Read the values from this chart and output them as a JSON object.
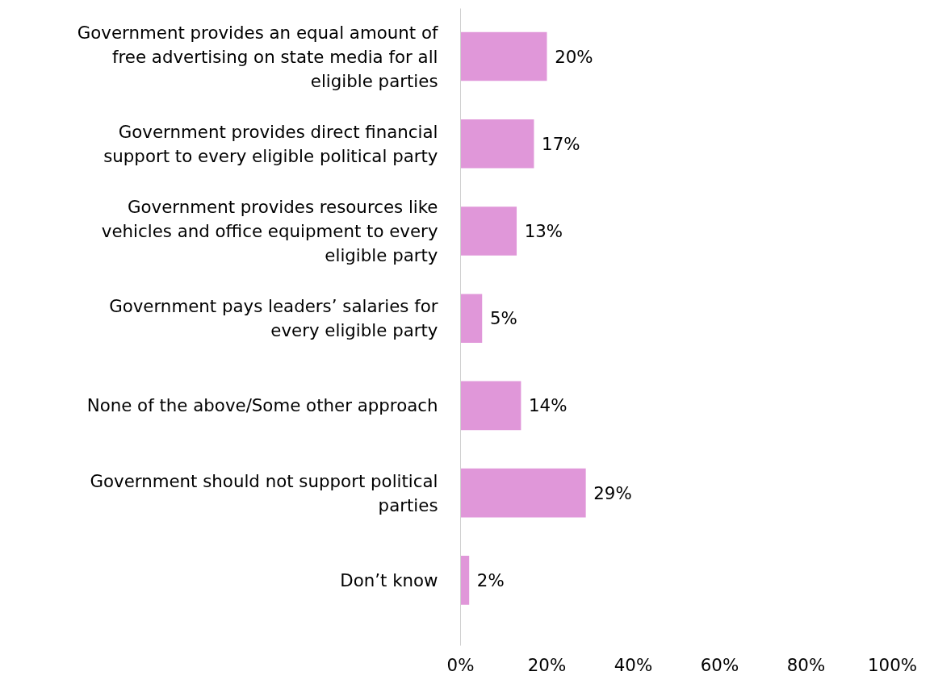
{
  "chart_data": {
    "type": "bar",
    "orientation": "horizontal",
    "categories": [
      "Government provides an equal amount of free advertising on state media for all eligible parties",
      "Government provides direct financial support to every eligible political party",
      "Government provides resources like vehicles and office equipment to every eligible party",
      "Government pays leaders’ salaries for every eligible party",
      "None of the above/Some other approach",
      "Government should not support political parties",
      "Don’t know"
    ],
    "values": [
      20,
      17,
      13,
      5,
      14,
      29,
      2
    ],
    "value_labels": [
      "20%",
      "17%",
      "13%",
      "5%",
      "14%",
      "29%",
      "2%"
    ],
    "color": "#e097d9",
    "xlim": [
      0,
      100
    ],
    "xticks": [
      {
        "value": 0,
        "label": "0%"
      },
      {
        "value": 20,
        "label": "20%"
      },
      {
        "value": 40,
        "label": "40%"
      },
      {
        "value": 60,
        "label": "60%"
      },
      {
        "value": 80,
        "label": "80%"
      },
      {
        "value": 100,
        "label": "100%"
      }
    ],
    "grid": false
  }
}
